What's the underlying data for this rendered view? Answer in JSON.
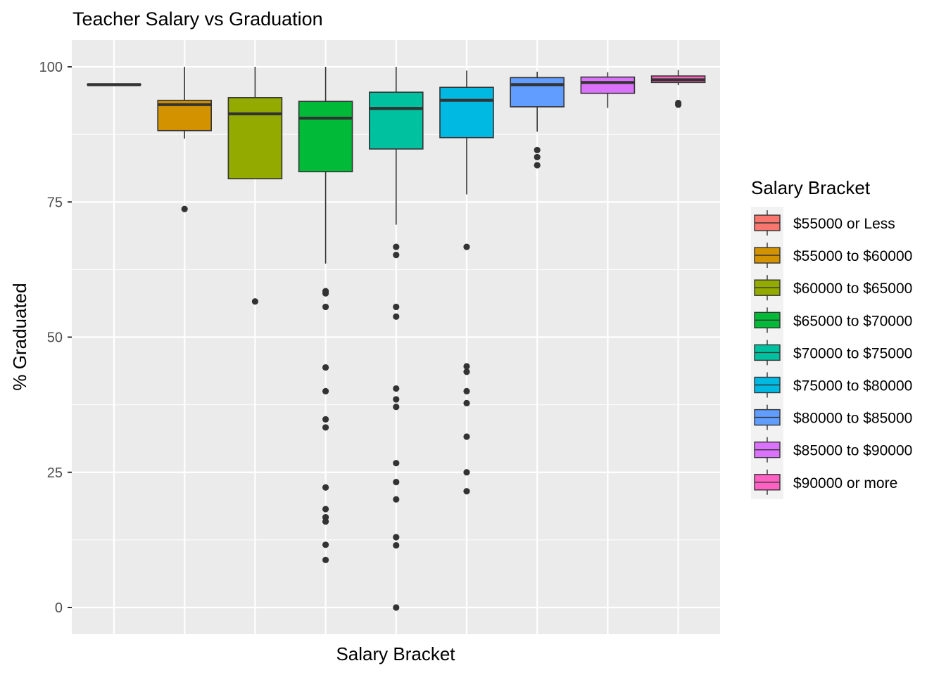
{
  "chart_data": {
    "type": "boxplot",
    "title": "Teacher Salary vs Graduation",
    "xlabel": "Salary Bracket",
    "ylabel": "% Graduated",
    "ylim": [
      -5,
      105
    ],
    "yticks": [
      0,
      25,
      50,
      75,
      100
    ],
    "x_tick_labels_shown": false,
    "grid": true,
    "legend": {
      "title": "Salary Bracket",
      "position": "right"
    },
    "series": [
      {
        "name": "$55000 or Less",
        "color": "#F8766D",
        "whisker_low": 96.7,
        "q1": 96.7,
        "median": 96.7,
        "q3": 96.7,
        "whisker_high": 96.7,
        "outliers": []
      },
      {
        "name": "$55000 to $60000",
        "color": "#D39200",
        "whisker_low": 86.7,
        "q1": 88.2,
        "median": 93.0,
        "q3": 93.8,
        "whisker_high": 100,
        "outliers": [
          73.7
        ]
      },
      {
        "name": "$60000 to $65000",
        "color": "#93AA00",
        "whisker_low": 79.3,
        "q1": 79.3,
        "median": 91.3,
        "q3": 94.3,
        "whisker_high": 100,
        "outliers": [
          56.6
        ]
      },
      {
        "name": "$65000 to $70000",
        "color": "#00BA38",
        "whisker_low": 63.6,
        "q1": 80.6,
        "median": 90.5,
        "q3": 93.6,
        "whisker_high": 100,
        "outliers": [
          58.5,
          58.1,
          55.6,
          44.4,
          40.0,
          34.8,
          33.3,
          22.2,
          18.2,
          16.7,
          15.9,
          11.6,
          8.8
        ]
      },
      {
        "name": "$70000 to $75000",
        "color": "#00C19F",
        "whisker_low": 70.8,
        "q1": 84.8,
        "median": 92.3,
        "q3": 95.3,
        "whisker_high": 100,
        "outliers": [
          66.7,
          65.2,
          55.6,
          53.8,
          40.5,
          38.5,
          37.1,
          26.7,
          23.2,
          20.0,
          13.0,
          11.5,
          0.0
        ]
      },
      {
        "name": "$75000 to $80000",
        "color": "#00B9E3",
        "whisker_low": 76.4,
        "q1": 86.9,
        "median": 93.8,
        "q3": 96.2,
        "whisker_high": 99.3,
        "outliers": [
          66.7,
          44.6,
          43.6,
          40.0,
          37.8,
          31.6,
          25.0,
          21.5
        ]
      },
      {
        "name": "$80000 to $85000",
        "color": "#619CFF",
        "whisker_low": 88.0,
        "q1": 92.6,
        "median": 96.7,
        "q3": 98.0,
        "whisker_high": 99.1,
        "outliers": [
          84.6,
          83.3,
          81.8
        ]
      },
      {
        "name": "$85000 to $90000",
        "color": "#DB72FB",
        "whisker_low": 92.4,
        "q1": 95.1,
        "median": 97.1,
        "q3": 98.1,
        "whisker_high": 99.0,
        "outliers": []
      },
      {
        "name": "$90000 or more",
        "color": "#FF61C3",
        "whisker_low": 96.6,
        "q1": 97.1,
        "median": 97.6,
        "q3": 98.3,
        "whisker_high": 99.4,
        "outliers": [
          93.3,
          93.0
        ]
      }
    ]
  }
}
